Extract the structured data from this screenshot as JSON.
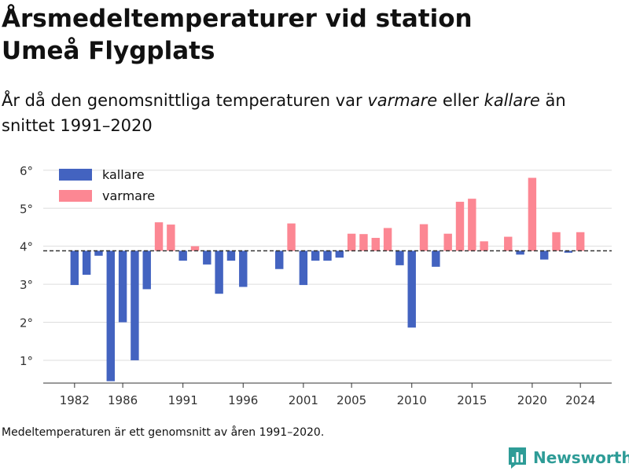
{
  "header": {
    "title_line1": "Årsmedeltemperaturer vid station",
    "title_line2": "Umeå Flygplats",
    "subtitle_start": "År då den genomsnittliga temperaturen var ",
    "subtitle_warm": "varmare",
    "subtitle_mid": " eller ",
    "subtitle_cold": "kallare",
    "subtitle_end": " än snittet 1991–2020"
  },
  "footnote": "Medeltemperaturen är ett genomsnitt av åren 1991–2020.",
  "brand": {
    "name": "Newsworthy",
    "icon": "bar-chart-logo-icon"
  },
  "colors": {
    "colder": "#4363c0",
    "warmer": "#fc8793",
    "baseline": "#333333",
    "grid": "#dddddd",
    "brand": "#2e9c97"
  },
  "chart_data": {
    "type": "bar",
    "baseline": 3.88,
    "ylim": [
      0.4,
      6.1
    ],
    "xlim": [
      1979.4,
      2026.6
    ],
    "yticks": [
      1,
      2,
      3,
      4,
      5,
      6
    ],
    "ytick_labels": [
      "1°",
      "2°",
      "3°",
      "4°",
      "5°",
      "6°"
    ],
    "xticks": [
      1982,
      1986,
      1991,
      1996,
      2001,
      2005,
      2010,
      2015,
      2020,
      2024
    ],
    "xtick_labels": [
      "1982",
      "1986",
      "1991",
      "1996",
      "2001",
      "2005",
      "2010",
      "2015",
      "2020",
      "2024"
    ],
    "legend_position": "top-left",
    "grid": true,
    "series": [
      {
        "name": "kallare",
        "color": "#4363c0"
      },
      {
        "name": "varmare",
        "color": "#fc8793"
      }
    ],
    "x": [
      1982,
      1983,
      1984,
      1985,
      1986,
      1987,
      1988,
      1989,
      1990,
      1991,
      1992,
      1993,
      1994,
      1995,
      1996,
      1997,
      1998,
      1999,
      2000,
      2001,
      2002,
      2003,
      2004,
      2005,
      2006,
      2007,
      2008,
      2009,
      2010,
      2011,
      2012,
      2013,
      2014,
      2015,
      2016,
      2017,
      2018,
      2019,
      2020,
      2021,
      2022,
      2023,
      2024
    ],
    "values": [
      2.98,
      3.25,
      3.75,
      0.45,
      2.0,
      1.0,
      2.87,
      4.63,
      4.57,
      3.62,
      4.0,
      3.52,
      2.75,
      3.62,
      2.93,
      3.88,
      3.88,
      3.4,
      4.6,
      2.98,
      3.62,
      3.62,
      3.7,
      4.33,
      4.32,
      4.22,
      4.48,
      3.5,
      1.86,
      4.58,
      3.46,
      4.33,
      5.17,
      5.25,
      4.13,
      3.88,
      4.25,
      3.78,
      5.8,
      3.65,
      4.37,
      3.83,
      4.37
    ]
  }
}
